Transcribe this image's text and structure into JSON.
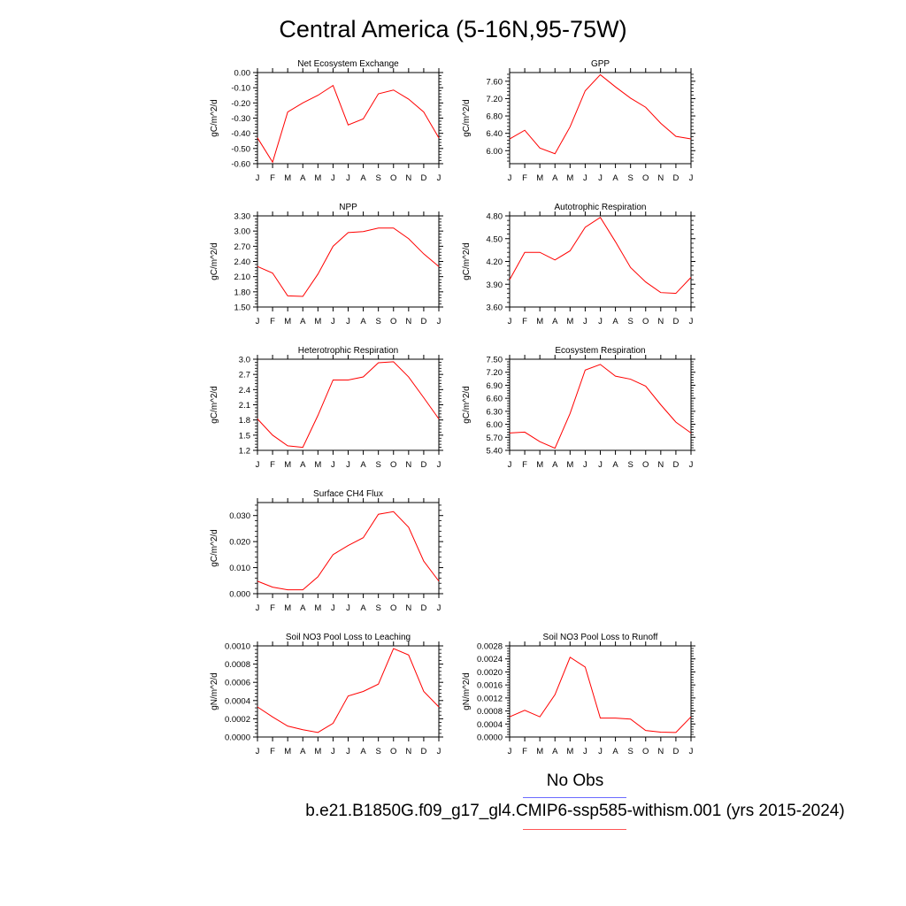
{
  "title": "Central America (5-16N,95-75W)",
  "legend": {
    "noobs_label": "No Obs",
    "noobs_color": "#6b6bff",
    "model_label": "b.e21.B1850G.f09_g17_gl4.CMIP6-ssp585-withism.001 (yrs 2015-2024)",
    "model_color": "#ff0000"
  },
  "chart_data": [
    {
      "type": "line",
      "title": "Net Ecosystem Exchange",
      "ylabel": "gC/m^2/d",
      "x": [
        "J",
        "F",
        "M",
        "A",
        "M",
        "J",
        "J",
        "A",
        "S",
        "O",
        "N",
        "D",
        "J"
      ],
      "series": [
        {
          "values": [
            -0.43,
            -0.59,
            -0.26,
            -0.2,
            -0.15,
            -0.085,
            -0.345,
            -0.305,
            -0.14,
            -0.115,
            -0.175,
            -0.26,
            -0.43
          ]
        }
      ],
      "ylim": [
        -0.6,
        0.0
      ],
      "yticks": [
        0.0,
        -0.1,
        -0.2,
        -0.3,
        -0.4,
        -0.5,
        -0.6
      ],
      "ytick_labels": [
        "0.00",
        "-0.10",
        "-0.20",
        "-0.30",
        "-0.40",
        "-0.50",
        "-0.60"
      ],
      "grid": false
    },
    {
      "type": "line",
      "title": "GPP",
      "ylabel": "gC/m^2/d",
      "x": [
        "J",
        "F",
        "M",
        "A",
        "M",
        "J",
        "J",
        "A",
        "S",
        "O",
        "N",
        "D",
        "J"
      ],
      "series": [
        {
          "values": [
            6.27,
            6.47,
            6.06,
            5.93,
            6.55,
            7.38,
            7.75,
            7.47,
            7.21,
            7.0,
            6.63,
            6.33,
            6.27
          ]
        }
      ],
      "ylim": [
        5.7,
        7.8
      ],
      "yticks": [
        7.6,
        7.2,
        6.8,
        6.4,
        6.0
      ],
      "ytick_labels": [
        "7.60",
        "7.20",
        "6.80",
        "6.40",
        "6.00"
      ],
      "grid": false
    },
    {
      "type": "line",
      "title": "NPP",
      "ylabel": "gC/m^2/d",
      "x": [
        "J",
        "F",
        "M",
        "A",
        "M",
        "J",
        "J",
        "A",
        "S",
        "O",
        "N",
        "D",
        "J"
      ],
      "series": [
        {
          "values": [
            2.3,
            2.17,
            1.72,
            1.71,
            2.15,
            2.7,
            2.97,
            2.99,
            3.06,
            3.06,
            2.85,
            2.55,
            2.3
          ]
        }
      ],
      "ylim": [
        1.5,
        3.3
      ],
      "yticks": [
        3.3,
        3.0,
        2.7,
        2.4,
        2.1,
        1.8,
        1.5
      ],
      "ytick_labels": [
        "3.30",
        "3.00",
        "2.70",
        "2.40",
        "2.10",
        "1.80",
        "1.50"
      ],
      "grid": false
    },
    {
      "type": "line",
      "title": "Autotrophic Respiration",
      "ylabel": "gC/m^2/d",
      "x": [
        "J",
        "F",
        "M",
        "A",
        "M",
        "J",
        "J",
        "A",
        "S",
        "O",
        "N",
        "D",
        "J"
      ],
      "series": [
        {
          "values": [
            3.96,
            4.32,
            4.32,
            4.22,
            4.34,
            4.65,
            4.78,
            4.46,
            4.12,
            3.93,
            3.79,
            3.78,
            3.99
          ]
        }
      ],
      "ylim": [
        3.6,
        4.8
      ],
      "yticks": [
        4.8,
        4.5,
        4.2,
        3.9,
        3.6
      ],
      "ytick_labels": [
        "4.80",
        "4.50",
        "4.20",
        "3.90",
        "3.60"
      ],
      "grid": false
    },
    {
      "type": "line",
      "title": "Heterotrophic Respiration",
      "ylabel": "gC/m^2/d",
      "x": [
        "J",
        "F",
        "M",
        "A",
        "M",
        "J",
        "J",
        "A",
        "S",
        "O",
        "N",
        "D",
        "J"
      ],
      "series": [
        {
          "values": [
            1.82,
            1.5,
            1.29,
            1.26,
            1.89,
            2.59,
            2.59,
            2.65,
            2.93,
            2.95,
            2.65,
            2.24,
            1.82
          ]
        }
      ],
      "ylim": [
        1.2,
        3.0
      ],
      "yticks": [
        3.0,
        2.7,
        2.4,
        2.1,
        1.8,
        1.5,
        1.2
      ],
      "ytick_labels": [
        "3.0",
        "2.7",
        "2.4",
        "2.1",
        "1.8",
        "1.5",
        "1.2"
      ],
      "grid": false
    },
    {
      "type": "line",
      "title": "Ecosystem Respiration",
      "ylabel": "gC/m^2/d",
      "x": [
        "J",
        "F",
        "M",
        "A",
        "M",
        "J",
        "J",
        "A",
        "S",
        "O",
        "N",
        "D",
        "J"
      ],
      "series": [
        {
          "values": [
            5.8,
            5.82,
            5.6,
            5.45,
            6.25,
            7.25,
            7.38,
            7.11,
            7.04,
            6.88,
            6.45,
            6.05,
            5.8
          ]
        }
      ],
      "ylim": [
        5.4,
        7.5
      ],
      "yticks": [
        7.5,
        7.2,
        6.9,
        6.6,
        6.3,
        6.0,
        5.7,
        5.4
      ],
      "ytick_labels": [
        "7.50",
        "7.20",
        "6.90",
        "6.60",
        "6.30",
        "6.00",
        "5.70",
        "5.40"
      ],
      "grid": false
    },
    {
      "type": "line",
      "title": "Surface CH4 Flux",
      "ylabel": "gC/m^2/d",
      "x": [
        "J",
        "F",
        "M",
        "A",
        "M",
        "J",
        "J",
        "A",
        "S",
        "O",
        "N",
        "D",
        "J"
      ],
      "series": [
        {
          "values": [
            0.0048,
            0.0025,
            0.0015,
            0.0015,
            0.0065,
            0.015,
            0.0185,
            0.0215,
            0.0305,
            0.0315,
            0.0255,
            0.0125,
            0.0048
          ]
        }
      ],
      "ylim": [
        0.0,
        0.035
      ],
      "yticks": [
        0.03,
        0.02,
        0.01,
        0.0
      ],
      "ytick_labels": [
        "0.030",
        "0.020",
        "0.010",
        "0.000"
      ],
      "grid": false
    },
    {
      "type": "line",
      "title": "Soil NO3 Pool Loss to Leaching",
      "ylabel": "gN/m^2/d",
      "x": [
        "J",
        "F",
        "M",
        "A",
        "M",
        "J",
        "J",
        "A",
        "S",
        "O",
        "N",
        "D",
        "J"
      ],
      "series": [
        {
          "values": [
            0.00033,
            0.00022,
            0.00012,
            8e-05,
            5e-05,
            0.00015,
            0.00045,
            0.0005,
            0.00058,
            0.00097,
            0.0009,
            0.0005,
            0.00033
          ]
        }
      ],
      "ylim": [
        0.0,
        0.001
      ],
      "yticks": [
        0.001,
        0.0008,
        0.0006,
        0.0004,
        0.0002,
        0.0
      ],
      "ytick_labels": [
        "0.0010",
        "0.0008",
        "0.0006",
        "0.0004",
        "0.0002",
        "0.0000"
      ],
      "grid": false
    },
    {
      "type": "line",
      "title": "Soil NO3 Pool Loss to Runoff",
      "ylabel": "gN/m^2/d",
      "x": [
        "J",
        "F",
        "M",
        "A",
        "M",
        "J",
        "J",
        "A",
        "S",
        "O",
        "N",
        "D",
        "J"
      ],
      "series": [
        {
          "values": [
            0.00062,
            0.00082,
            0.00062,
            0.0013,
            0.00245,
            0.00215,
            0.00058,
            0.00058,
            0.00055,
            0.0002,
            0.00015,
            0.00014,
            0.00062
          ]
        }
      ],
      "ylim": [
        0.0,
        0.0028
      ],
      "yticks": [
        0.0028,
        0.0024,
        0.002,
        0.0016,
        0.0012,
        0.0008,
        0.0004,
        0.0
      ],
      "ytick_labels": [
        "0.0028",
        "0.0024",
        "0.0020",
        "0.0016",
        "0.0012",
        "0.0008",
        "0.0004",
        "0.0000"
      ],
      "grid": false
    }
  ]
}
